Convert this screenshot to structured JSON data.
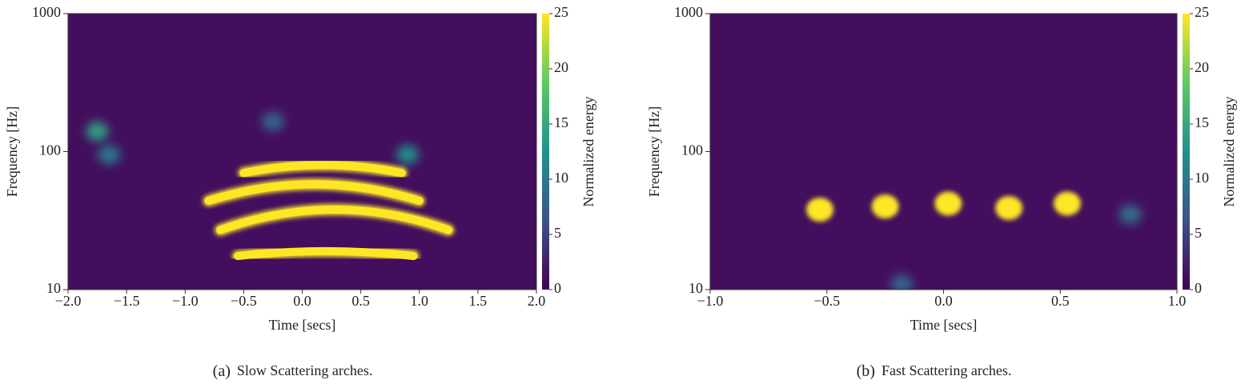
{
  "chart_data": [
    {
      "type": "spectrogram",
      "xlabel": "Time [secs]",
      "ylabel": "Frequency [Hz]",
      "xlim": [
        -2,
        2
      ],
      "ylim": [
        10,
        1000
      ],
      "yscale": "log",
      "xticks": [
        {
          "value": -2,
          "label": "−2.0"
        },
        {
          "value": -1.5,
          "label": "−1.5"
        },
        {
          "value": -1,
          "label": "−1.0"
        },
        {
          "value": -0.5,
          "label": "−0.5"
        },
        {
          "value": 0,
          "label": "0.0"
        },
        {
          "value": 0.5,
          "label": "0.5"
        },
        {
          "value": 1,
          "label": "1.0"
        },
        {
          "value": 1.5,
          "label": "1.5"
        },
        {
          "value": 2,
          "label": "2.0"
        }
      ],
      "yticks": [
        10,
        100,
        1000
      ],
      "colorbar_label": "Normalized energy",
      "clim": [
        0,
        25
      ],
      "cticks": [
        0,
        5,
        10,
        15,
        20,
        25
      ],
      "colormap": [
        "#440154",
        "#3b528b",
        "#21918c",
        "#5ec962",
        "#fde725"
      ],
      "background_energy": 1,
      "arches": [
        {
          "t": [
            -0.5,
            0.85
          ],
          "f_peak": 80,
          "f_end": 70,
          "energy": 25
        },
        {
          "t": [
            -0.8,
            1.0
          ],
          "f_peak": 58,
          "f_end": 44,
          "energy": 25
        },
        {
          "t": [
            -0.7,
            1.25
          ],
          "f_peak": 38,
          "f_end": 27,
          "energy": 25
        },
        {
          "t": [
            -0.55,
            0.95
          ],
          "f_peak": 19,
          "f_end": 17.5,
          "energy": 25
        }
      ],
      "blobs": [
        {
          "t": -1.75,
          "f": 140,
          "energy": 14
        },
        {
          "t": -1.65,
          "f": 95,
          "energy": 10
        },
        {
          "t": 0.9,
          "f": 95,
          "energy": 12
        },
        {
          "t": -0.25,
          "f": 165,
          "energy": 8
        }
      ],
      "caption_label": "(a)",
      "caption": "Slow Scattering arches."
    },
    {
      "type": "spectrogram",
      "xlabel": "Time [secs]",
      "ylabel": "Frequency [Hz]",
      "xlim": [
        -1,
        1
      ],
      "ylim": [
        10,
        1000
      ],
      "yscale": "log",
      "xticks": [
        {
          "value": -1,
          "label": "−1.0"
        },
        {
          "value": -0.5,
          "label": "−0.5"
        },
        {
          "value": 0,
          "label": "0.0"
        },
        {
          "value": 0.5,
          "label": "0.5"
        },
        {
          "value": 1,
          "label": "1.0"
        }
      ],
      "yticks": [
        10,
        100,
        1000
      ],
      "colorbar_label": "Normalized energy",
      "clim": [
        0,
        25
      ],
      "cticks": [
        0,
        5,
        10,
        15,
        20,
        25
      ],
      "colormap": [
        "#440154",
        "#3b528b",
        "#21918c",
        "#5ec962",
        "#fde725"
      ],
      "background_energy": 1,
      "arches": [],
      "blobs": [
        {
          "t": -0.53,
          "f": 38,
          "energy": 25
        },
        {
          "t": -0.25,
          "f": 40,
          "energy": 25
        },
        {
          "t": 0.02,
          "f": 42,
          "energy": 25
        },
        {
          "t": 0.28,
          "f": 39,
          "energy": 25
        },
        {
          "t": 0.53,
          "f": 42,
          "energy": 25
        },
        {
          "t": 0.8,
          "f": 35,
          "energy": 9
        },
        {
          "t": -0.18,
          "f": 11,
          "energy": 8
        }
      ],
      "caption_label": "(b)",
      "caption": "Fast Scattering arches."
    }
  ]
}
